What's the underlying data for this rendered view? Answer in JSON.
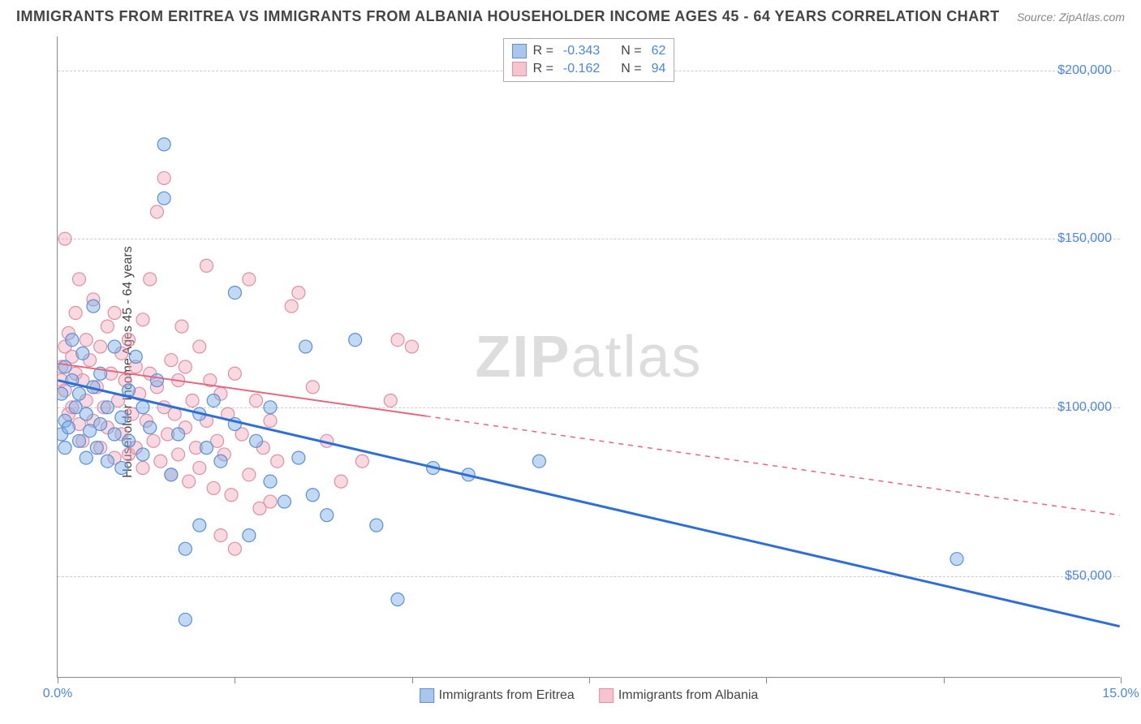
{
  "header": {
    "title": "IMMIGRANTS FROM ERITREA VS IMMIGRANTS FROM ALBANIA HOUSEHOLDER INCOME AGES 45 - 64 YEARS CORRELATION CHART",
    "source": "Source: ZipAtlas.com"
  },
  "chart": {
    "type": "scatter",
    "ylabel": "Householder Income Ages 45 - 64 years",
    "watermark": "ZIPatlas",
    "xlim": [
      0,
      15
    ],
    "ylim": [
      20000,
      210000
    ],
    "xticks": [
      0,
      2.5,
      5,
      7.5,
      10,
      12.5,
      15
    ],
    "xtick_labels": {
      "0": "0.0%",
      "15": "15.0%"
    },
    "yticks": [
      50000,
      100000,
      150000,
      200000
    ],
    "ytick_labels": [
      "$50,000",
      "$100,000",
      "$150,000",
      "$200,000"
    ],
    "grid_color": "#cccccc",
    "background_color": "#ffffff",
    "series": [
      {
        "name": "Immigrants from Eritrea",
        "R": "-0.343",
        "N": "62",
        "color_fill": "rgba(120,170,230,0.45)",
        "color_stroke": "#5b8fd6",
        "swatch_fill": "#aac6ec",
        "swatch_stroke": "#5b8fd6",
        "trend": {
          "x1": 0,
          "y1": 108000,
          "x2": 15,
          "y2": 35000,
          "solid_until_x": 15
        },
        "points": [
          [
            0.05,
            92000
          ],
          [
            0.1,
            96000
          ],
          [
            0.1,
            112000
          ],
          [
            0.1,
            88000
          ],
          [
            0.15,
            94000
          ],
          [
            0.2,
            108000
          ],
          [
            0.2,
            120000
          ],
          [
            0.25,
            100000
          ],
          [
            0.3,
            104000
          ],
          [
            0.3,
            90000
          ],
          [
            0.35,
            116000
          ],
          [
            0.4,
            98000
          ],
          [
            0.4,
            85000
          ],
          [
            0.45,
            93000
          ],
          [
            0.5,
            106000
          ],
          [
            0.5,
            130000
          ],
          [
            0.55,
            88000
          ],
          [
            0.6,
            95000
          ],
          [
            0.6,
            110000
          ],
          [
            0.7,
            100000
          ],
          [
            0.7,
            84000
          ],
          [
            0.8,
            92000
          ],
          [
            0.8,
            118000
          ],
          [
            0.9,
            97000
          ],
          [
            0.9,
            82000
          ],
          [
            1.0,
            105000
          ],
          [
            1.0,
            90000
          ],
          [
            1.1,
            115000
          ],
          [
            1.2,
            86000
          ],
          [
            1.2,
            100000
          ],
          [
            1.3,
            94000
          ],
          [
            1.4,
            108000
          ],
          [
            1.5,
            162000
          ],
          [
            1.5,
            178000
          ],
          [
            1.6,
            80000
          ],
          [
            1.7,
            92000
          ],
          [
            1.8,
            58000
          ],
          [
            1.8,
            37000
          ],
          [
            2.0,
            98000
          ],
          [
            2.0,
            65000
          ],
          [
            2.1,
            88000
          ],
          [
            2.2,
            102000
          ],
          [
            2.3,
            84000
          ],
          [
            2.5,
            95000
          ],
          [
            2.5,
            134000
          ],
          [
            2.7,
            62000
          ],
          [
            2.8,
            90000
          ],
          [
            3.0,
            78000
          ],
          [
            3.0,
            100000
          ],
          [
            3.2,
            72000
          ],
          [
            3.4,
            85000
          ],
          [
            3.5,
            118000
          ],
          [
            3.6,
            74000
          ],
          [
            3.8,
            68000
          ],
          [
            4.2,
            120000
          ],
          [
            4.5,
            65000
          ],
          [
            4.8,
            43000
          ],
          [
            5.3,
            82000
          ],
          [
            5.8,
            80000
          ],
          [
            6.8,
            84000
          ],
          [
            12.7,
            55000
          ],
          [
            0.05,
            104000
          ]
        ]
      },
      {
        "name": "Immigrants from Albania",
        "R": "-0.162",
        "N": "94",
        "color_fill": "rgba(240,160,180,0.4)",
        "color_stroke": "#e08fa3",
        "swatch_fill": "#f5c4d0",
        "swatch_stroke": "#e08fa3",
        "trend": {
          "x1": 0,
          "y1": 113000,
          "x2": 15,
          "y2": 68000,
          "solid_until_x": 5.2
        },
        "points": [
          [
            0.05,
            112000
          ],
          [
            0.05,
            108000
          ],
          [
            0.1,
            150000
          ],
          [
            0.1,
            118000
          ],
          [
            0.1,
            105000
          ],
          [
            0.15,
            122000
          ],
          [
            0.15,
            98000
          ],
          [
            0.2,
            115000
          ],
          [
            0.2,
            100000
          ],
          [
            0.25,
            128000
          ],
          [
            0.25,
            110000
          ],
          [
            0.3,
            95000
          ],
          [
            0.3,
            138000
          ],
          [
            0.35,
            108000
          ],
          [
            0.35,
            90000
          ],
          [
            0.4,
            120000
          ],
          [
            0.4,
            102000
          ],
          [
            0.45,
            114000
          ],
          [
            0.5,
            96000
          ],
          [
            0.5,
            132000
          ],
          [
            0.55,
            106000
          ],
          [
            0.6,
            88000
          ],
          [
            0.6,
            118000
          ],
          [
            0.65,
            100000
          ],
          [
            0.7,
            124000
          ],
          [
            0.7,
            94000
          ],
          [
            0.75,
            110000
          ],
          [
            0.8,
            85000
          ],
          [
            0.8,
            128000
          ],
          [
            0.85,
            102000
          ],
          [
            0.9,
            116000
          ],
          [
            0.9,
            92000
          ],
          [
            0.95,
            108000
          ],
          [
            1.0,
            86000
          ],
          [
            1.0,
            120000
          ],
          [
            1.05,
            98000
          ],
          [
            1.1,
            112000
          ],
          [
            1.1,
            88000
          ],
          [
            1.15,
            104000
          ],
          [
            1.2,
            126000
          ],
          [
            1.2,
            82000
          ],
          [
            1.25,
            96000
          ],
          [
            1.3,
            110000
          ],
          [
            1.3,
            138000
          ],
          [
            1.35,
            90000
          ],
          [
            1.4,
            106000
          ],
          [
            1.4,
            158000
          ],
          [
            1.45,
            84000
          ],
          [
            1.5,
            100000
          ],
          [
            1.5,
            168000
          ],
          [
            1.55,
            92000
          ],
          [
            1.6,
            114000
          ],
          [
            1.6,
            80000
          ],
          [
            1.65,
            98000
          ],
          [
            1.7,
            108000
          ],
          [
            1.7,
            86000
          ],
          [
            1.75,
            124000
          ],
          [
            1.8,
            94000
          ],
          [
            1.8,
            112000
          ],
          [
            1.85,
            78000
          ],
          [
            1.9,
            102000
          ],
          [
            1.95,
            88000
          ],
          [
            2.0,
            118000
          ],
          [
            2.0,
            82000
          ],
          [
            2.1,
            96000
          ],
          [
            2.1,
            142000
          ],
          [
            2.15,
            108000
          ],
          [
            2.2,
            76000
          ],
          [
            2.25,
            90000
          ],
          [
            2.3,
            104000
          ],
          [
            2.3,
            62000
          ],
          [
            2.35,
            86000
          ],
          [
            2.4,
            98000
          ],
          [
            2.45,
            74000
          ],
          [
            2.5,
            110000
          ],
          [
            2.5,
            58000
          ],
          [
            2.6,
            92000
          ],
          [
            2.7,
            80000
          ],
          [
            2.7,
            138000
          ],
          [
            2.8,
            102000
          ],
          [
            2.85,
            70000
          ],
          [
            2.9,
            88000
          ],
          [
            3.0,
            96000
          ],
          [
            3.0,
            72000
          ],
          [
            3.1,
            84000
          ],
          [
            3.3,
            130000
          ],
          [
            3.4,
            134000
          ],
          [
            3.6,
            106000
          ],
          [
            3.8,
            90000
          ],
          [
            4.0,
            78000
          ],
          [
            4.3,
            84000
          ],
          [
            4.7,
            102000
          ],
          [
            4.8,
            120000
          ],
          [
            5.0,
            118000
          ]
        ]
      }
    ]
  }
}
